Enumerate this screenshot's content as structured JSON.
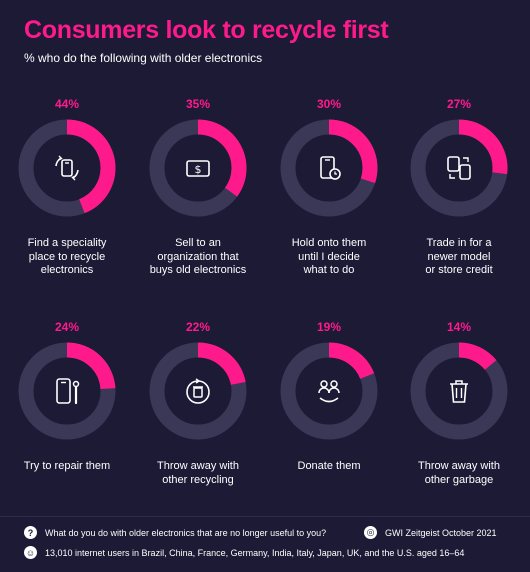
{
  "title": "Consumers look to recycle first",
  "subtitle": "% who do the following with older electronics",
  "colors": {
    "accent": "#ff1a8c",
    "track": "#3b3857",
    "background": "#1c1a35"
  },
  "chart_data": {
    "type": "donut",
    "title": "Consumers look to recycle first",
    "subtitle": "% who do the following with older electronics",
    "categories": [
      "Find a speciality place to recycle electronics",
      "Sell to an organization that buys old electronics",
      "Hold onto them until I decide what to do",
      "Trade in for a newer model or store credit",
      "Try to repair them",
      "Throw away with other recycling",
      "Donate them",
      "Throw away with other garbage"
    ],
    "values": [
      44,
      35,
      30,
      27,
      24,
      22,
      19,
      14
    ],
    "value_labels": [
      "44%",
      "35%",
      "30%",
      "27%",
      "24%",
      "22%",
      "19%",
      "14%"
    ],
    "label_lines": [
      [
        "Find a speciality",
        "place to recycle",
        "electronics"
      ],
      [
        "Sell to an",
        "organization that",
        "buys old electronics"
      ],
      [
        "Hold onto them",
        "until I decide",
        "what to do"
      ],
      [
        "Trade in for a",
        "newer model",
        "or store credit"
      ],
      [
        "Try to repair them"
      ],
      [
        "Throw away with",
        "other recycling"
      ],
      [
        "Donate them"
      ],
      [
        "Throw away with",
        "other garbage"
      ]
    ],
    "icons": [
      "recycle-device-icon",
      "dollar-bill-icon",
      "phone-clock-icon",
      "swap-devices-icon",
      "repair-phone-icon",
      "recycle-bin-icon",
      "donate-people-icon",
      "trash-can-icon"
    ],
    "max": 100
  },
  "footer": {
    "question": "What do you do with older electronics that are no longer useful to you?",
    "source": "GWI Zeitgeist October 2021",
    "sample": "13,010 internet users in Brazil, China, France, Germany, India, Italy, Japan, UK, and the U.S. aged 16–64"
  }
}
